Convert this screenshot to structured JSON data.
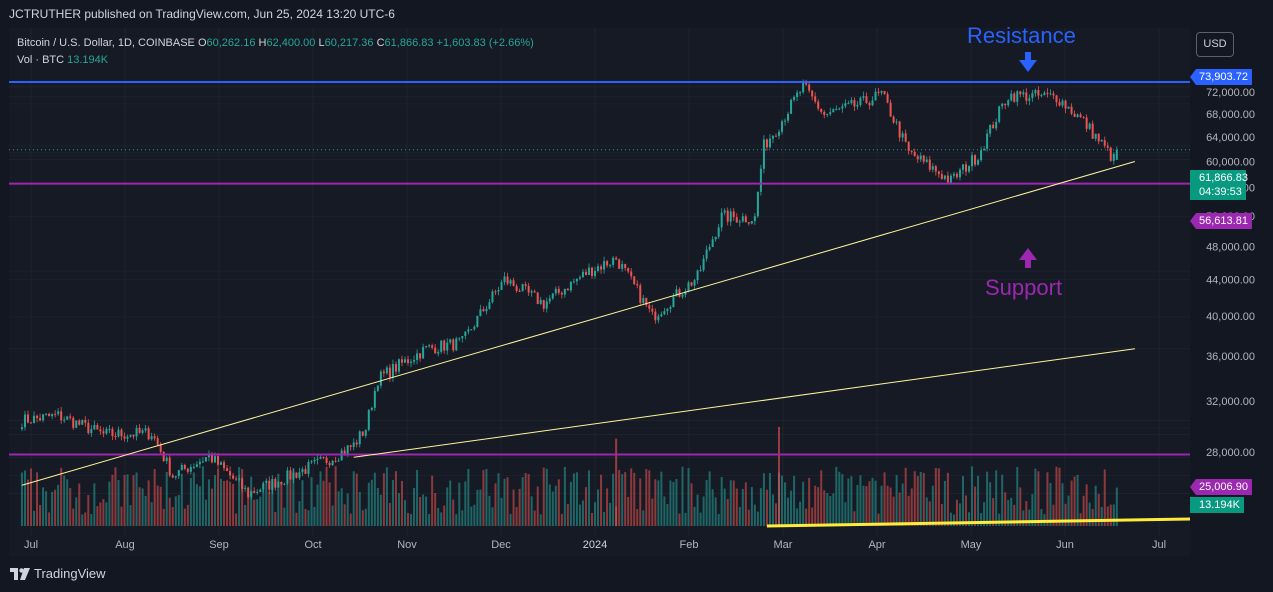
{
  "publish_line": "JCTRUTHER published on TradingView.com, Jun 25, 2024 13:20 UTC-6",
  "legend": {
    "symbol": "Bitcoin / U.S. Dollar, 1D, COINBASE",
    "open_label": "O",
    "open": "60,262.16",
    "high_label": "H",
    "high": "62,400.00",
    "low_label": "L",
    "low": "60,217.36",
    "close_label": "C",
    "close": "61,866.83",
    "change": "+1,603.83 (+2.66%)",
    "vol_label": "Vol · BTC",
    "vol_value": "13.194K"
  },
  "currency_button": "USD",
  "price_axis_labels": [
    "72,000.00",
    "68,000.00",
    "64,000.00",
    "60,000.00",
    "56,000.00",
    "52,000.00",
    "48,000.00",
    "44,000.00",
    "40,000.00",
    "36,000.00",
    "32,000.00",
    "28,000.00"
  ],
  "time_axis_labels": [
    "Jul",
    "Aug",
    "Sep",
    "Oct",
    "Nov",
    "Dec",
    "2024",
    "Feb",
    "Mar",
    "Apr",
    "May",
    "Jun",
    "Jul"
  ],
  "axis_tags": {
    "resistance": "73,903.72",
    "current_price": "61,866.83",
    "countdown": "04:39:53",
    "support": "56,613.81",
    "volume_level": "25,006.90",
    "volume_current": "13.194K"
  },
  "annotations": {
    "resistance": "Resistance",
    "support": "Support"
  },
  "brand": "TradingView",
  "colors": {
    "background": "#161a25",
    "up": "#26a69a",
    "down": "#ef5350",
    "resistance_line": "#2962ff",
    "support_line": "#9c27b0",
    "trendline": "#fff59d",
    "resistance_text": "#2962ff",
    "support_text": "#9c27b0"
  },
  "chart_data": {
    "type": "candlestick",
    "symbol": "BTCUSD",
    "timeframe": "1D",
    "x_range": [
      "2023-07-01",
      "2024-07-01"
    ],
    "y_range": [
      25000,
      75500
    ],
    "grid": true,
    "price_points": [
      [
        "2023-06-28",
        30400
      ],
      [
        "2023-07-10",
        30800
      ],
      [
        "2023-07-25",
        29300
      ],
      [
        "2023-08-10",
        29400
      ],
      [
        "2023-08-17",
        26300
      ],
      [
        "2023-08-29",
        27700
      ],
      [
        "2023-09-11",
        25100
      ],
      [
        "2023-09-25",
        26300
      ],
      [
        "2023-10-09",
        27600
      ],
      [
        "2023-10-16",
        28500
      ],
      [
        "2023-10-20",
        29800
      ],
      [
        "2023-10-24",
        33900
      ],
      [
        "2023-11-09",
        36700
      ],
      [
        "2023-11-21",
        37300
      ],
      [
        "2023-12-05",
        44000
      ],
      [
        "2023-12-18",
        41300
      ],
      [
        "2024-01-02",
        45000
      ],
      [
        "2024-01-11",
        46500
      ],
      [
        "2024-01-23",
        39900
      ],
      [
        "2024-02-07",
        44300
      ],
      [
        "2024-02-15",
        51900
      ],
      [
        "2024-02-26",
        51700
      ],
      [
        "2024-02-29",
        62500
      ],
      [
        "2024-03-05",
        66000
      ],
      [
        "2024-03-13",
        73000
      ],
      [
        "2024-03-20",
        67800
      ],
      [
        "2024-04-01",
        69800
      ],
      [
        "2024-04-08",
        71600
      ],
      [
        "2024-04-17",
        61400
      ],
      [
        "2024-05-01",
        57000
      ],
      [
        "2024-05-10",
        61000
      ],
      [
        "2024-05-20",
        71400
      ],
      [
        "2024-06-05",
        71100
      ],
      [
        "2024-06-14",
        66600
      ],
      [
        "2024-06-24",
        60300
      ],
      [
        "2024-06-25",
        61866.83
      ]
    ],
    "last_candle": {
      "date": "2024-06-25",
      "open": 60262.16,
      "high": 62400.0,
      "low": 60217.36,
      "close": 61866.83
    },
    "resistance_level": 73903.72,
    "support_level": 56613.81,
    "trendlines": [
      {
        "start": [
          "2023-06-28",
          25650
        ],
        "end": [
          "2024-07-01",
          60000
        ]
      },
      {
        "start": [
          "2023-10-16",
          27600
        ],
        "end": [
          "2024-07-01",
          36700
        ]
      }
    ],
    "volume": {
      "unit": "BTC",
      "latest": 13194,
      "reference_level": 25006.9,
      "peaks": [
        [
          "2024-03-05",
          34700
        ],
        [
          "2024-01-11",
          30600
        ]
      ]
    }
  }
}
